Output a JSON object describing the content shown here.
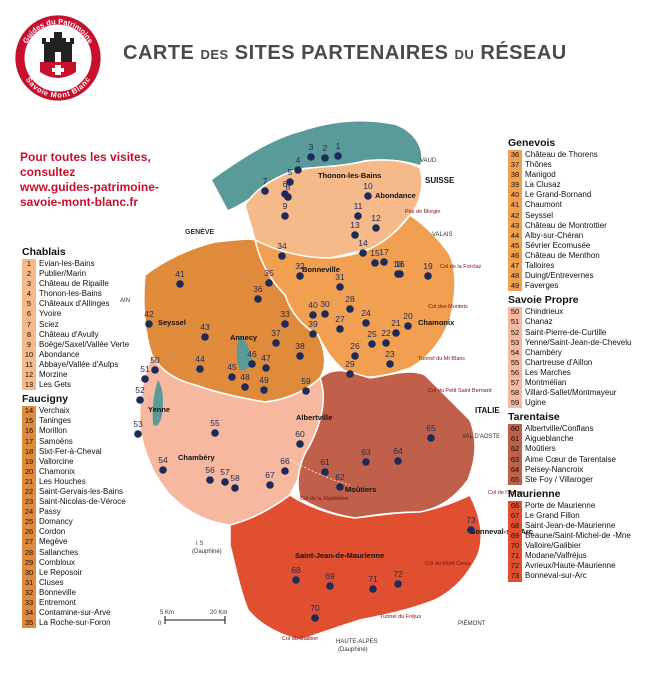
{
  "title": {
    "w1": "CARTE",
    "w2": "DES",
    "w3": "SITES PARTENAIRES",
    "w4": "DU",
    "w5": "RÉSEAU"
  },
  "logo": {
    "top": "Guides du Patrimoine",
    "bottom": "Savoie Mont Blanc"
  },
  "promo": [
    "Pour toutes les visites,",
    "consultez",
    "www.guides-patrimoine-",
    "savoie-mont-blanc.fr"
  ],
  "colors": {
    "chablais": "#f5b98a",
    "faucigny": "#e08a3c",
    "genevois": "#f0a050",
    "savoie_propre": "#f7b8a0",
    "tarentaise": "#c0604a",
    "maurienne": "#e05030",
    "lake": "#5a9a98",
    "border": "#ffffff"
  },
  "groups": [
    {
      "name": "Chablais",
      "swatch": "#f5b98a",
      "items": [
        {
          "n": "1",
          "t": "Evian-les-Bains"
        },
        {
          "n": "2",
          "t": "Publier/Marin"
        },
        {
          "n": "3",
          "t": "Château de Ripaille"
        },
        {
          "n": "4",
          "t": "Thonon-les-Bains"
        },
        {
          "n": "5",
          "t": "Châteaux d'Allinges"
        },
        {
          "n": "6",
          "t": "Yvoire"
        },
        {
          "n": "7",
          "t": "Sciez"
        },
        {
          "n": "8",
          "t": "Château d'Avully"
        },
        {
          "n": "9",
          "t": "Boëge/Saxel/Vallée Verte"
        },
        {
          "n": "10",
          "t": "Abondance"
        },
        {
          "n": "11",
          "t": "Abbaye/Vallée d'Aulps"
        },
        {
          "n": "12",
          "t": "Morzine"
        },
        {
          "n": "13",
          "t": "Les Gets"
        }
      ]
    },
    {
      "name": "Faucigny",
      "swatch": "#e08a3c",
      "items": [
        {
          "n": "14",
          "t": "Verchaix"
        },
        {
          "n": "15",
          "t": "Taninges"
        },
        {
          "n": "16",
          "t": "Morillon"
        },
        {
          "n": "17",
          "t": "Samoëns"
        },
        {
          "n": "18",
          "t": "Sixt-Fer-à-Cheval"
        },
        {
          "n": "19",
          "t": "Vallorcine"
        },
        {
          "n": "20",
          "t": "Chamonix"
        },
        {
          "n": "21",
          "t": "Les Houches"
        },
        {
          "n": "22",
          "t": "Saint-Gervais-les-Bains"
        },
        {
          "n": "23",
          "t": "Saint-Nicolas-de-Véroce"
        },
        {
          "n": "24",
          "t": "Passy"
        },
        {
          "n": "25",
          "t": "Domancy"
        },
        {
          "n": "26",
          "t": "Cordon"
        },
        {
          "n": "27",
          "t": "Megève"
        },
        {
          "n": "28",
          "t": "Sallanches"
        },
        {
          "n": "29",
          "t": "Combloux"
        },
        {
          "n": "30",
          "t": "Le Reposoir"
        },
        {
          "n": "31",
          "t": "Cluses"
        },
        {
          "n": "32",
          "t": "Bonneville"
        },
        {
          "n": "33",
          "t": "Entremont"
        },
        {
          "n": "34",
          "t": "Contamine-sur-Arve"
        },
        {
          "n": "35",
          "t": "La Roche-sur-Foron"
        }
      ]
    },
    {
      "name": "Genevois",
      "swatch": "#f0a050",
      "items": [
        {
          "n": "36",
          "t": "Château de Thorens"
        },
        {
          "n": "37",
          "t": "Thônes"
        },
        {
          "n": "38",
          "t": "Manigod"
        },
        {
          "n": "39",
          "t": "La Clusaz"
        },
        {
          "n": "40",
          "t": "Le Grand-Bornand"
        },
        {
          "n": "41",
          "t": "Chaumont"
        },
        {
          "n": "42",
          "t": "Seyssel"
        },
        {
          "n": "43",
          "t": "Château de Montrottier"
        },
        {
          "n": "44",
          "t": "Alby-sur-Chéran"
        },
        {
          "n": "45",
          "t": "Sévrier Ecomusée"
        },
        {
          "n": "46",
          "t": "Château de Menthon"
        },
        {
          "n": "47",
          "t": "Talloires"
        },
        {
          "n": "48",
          "t": "Duingt/Entrevernes"
        },
        {
          "n": "49",
          "t": "Faverges"
        }
      ]
    },
    {
      "name": "Savoie Propre",
      "swatch": "#f7b8a0",
      "items": [
        {
          "n": "50",
          "t": "Chindrieux"
        },
        {
          "n": "51",
          "t": "Chanaz"
        },
        {
          "n": "52",
          "t": "Saint-Pierre-de-Curtille"
        },
        {
          "n": "53",
          "t": "Yenne/Saint-Jean-de-Chevelu"
        },
        {
          "n": "54",
          "t": "Chambéry"
        },
        {
          "n": "55",
          "t": "Chartreuse d'Aillon"
        },
        {
          "n": "56",
          "t": "Les Marches"
        },
        {
          "n": "57",
          "t": "Montmélian"
        },
        {
          "n": "58",
          "t": "Villard-Sallet/Montmayeur"
        },
        {
          "n": "59",
          "t": "Ugine"
        }
      ]
    },
    {
      "name": "Tarentaise",
      "swatch": "#c0604a",
      "items": [
        {
          "n": "60",
          "t": "Albertville/Conflans"
        },
        {
          "n": "61",
          "t": "Aigueblanche"
        },
        {
          "n": "62",
          "t": "Moûtiers"
        },
        {
          "n": "63",
          "t": "Aime Cœur de Tarentaise"
        },
        {
          "n": "64",
          "t": "Peisey-Nancroix"
        },
        {
          "n": "65",
          "t": "Ste Foy / Villaroger"
        }
      ]
    },
    {
      "name": "Maurienne",
      "swatch": "#e05030",
      "items": [
        {
          "n": "66",
          "t": "Porte de Maurienne"
        },
        {
          "n": "67",
          "t": "Le Grand Fillon"
        },
        {
          "n": "68",
          "t": "Saint-Jean-de-Maurienne"
        },
        {
          "n": "69",
          "t": "Beaune/Saint-Michel-de -Mne"
        },
        {
          "n": "70",
          "t": "Valloire/Galibier"
        },
        {
          "n": "71",
          "t": "Modane/Valfréjus"
        },
        {
          "n": "72",
          "t": "Avrieux/Haute-Maurienne"
        },
        {
          "n": "73",
          "t": "Bonneval-sur-Arc"
        }
      ]
    }
  ],
  "map_labels": {
    "towns": [
      "Thonon-les-Bains",
      "Abondance",
      "Bonneville",
      "Chamonix",
      "Seyssel",
      "Annecy",
      "Yenne",
      "Chambéry",
      "Albertville",
      "Moûtiers",
      "Saint-Jean-de-Maurienne",
      "Bonneval-sur-Arc"
    ],
    "countries": [
      "SUISSE",
      "ITALIE"
    ],
    "markers": [
      "VAUD",
      "VALAIS",
      "GENÈVE",
      "AIN",
      "VAL D'AOSTE",
      "PIÉMONT",
      "I S",
      "(Dauphiné)",
      "HAUTE-ALPES",
      "(Dauphiné)"
    ],
    "passes": [
      "Pas de Morgin",
      "Col de la Forclaz",
      "Col des Montets",
      "Tunnel du Mt Blanc",
      "Col du Petit Saint Bernard",
      "Col de l'Iseran",
      "Col de la Madeleine",
      "Col du Mont Cenis",
      "Tunnel du Fréjus",
      "Col du Galibier"
    ],
    "scale": [
      "0",
      "5 Km",
      "20 Km"
    ]
  },
  "icons": [
    "castle-logo-icon",
    "site-marker-icon",
    "pass-marker-icon"
  ]
}
